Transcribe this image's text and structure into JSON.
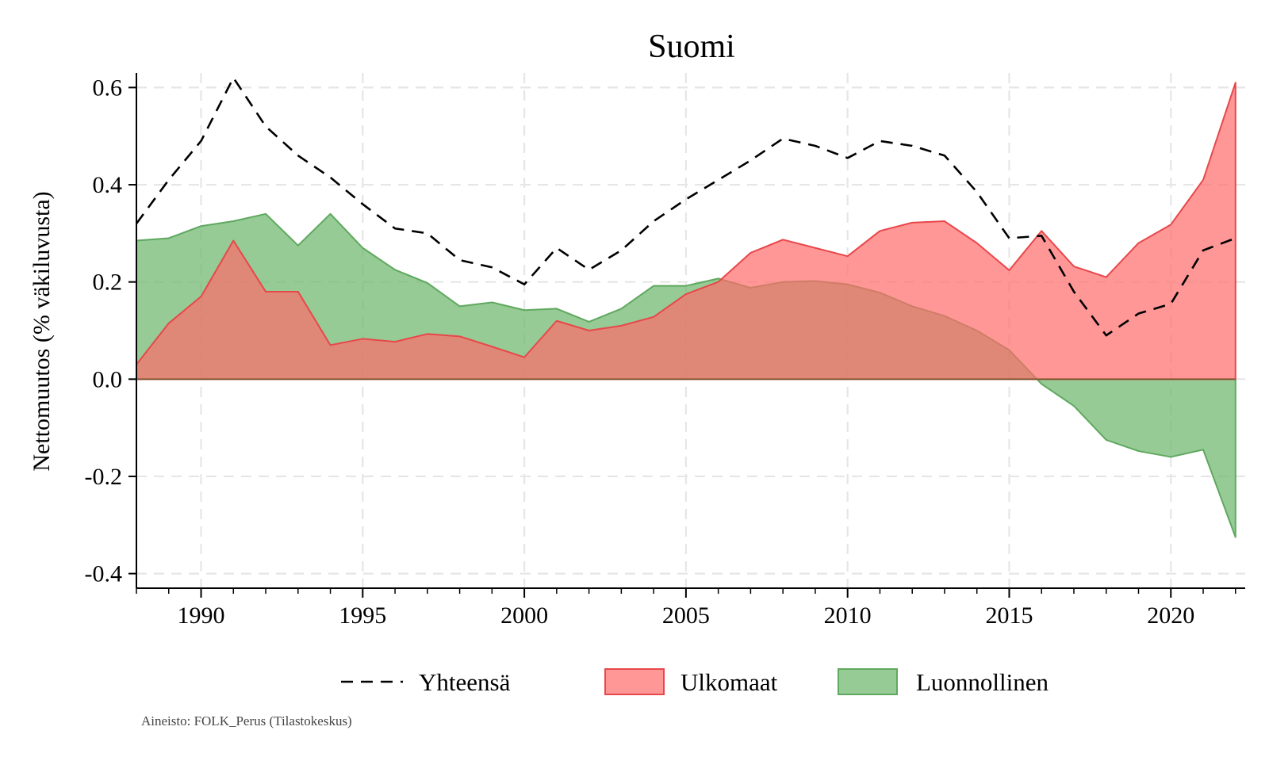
{
  "chart_data": {
    "type": "area",
    "title": "Suomi",
    "xlabel": "",
    "ylabel": "Nettomuutos (% väkiluvusta)",
    "xlim": [
      1988,
      2022.3
    ],
    "ylim": [
      -0.43,
      0.63
    ],
    "x_ticks": [
      1990,
      1995,
      2000,
      2005,
      2010,
      2015,
      2020
    ],
    "y_ticks": [
      -0.4,
      -0.2,
      0.0,
      0.2,
      0.4,
      0.6
    ],
    "y_tick_labels": [
      "-0.4",
      "-0.2",
      "0.0",
      "0.2",
      "0.4",
      "0.6"
    ],
    "grid": true,
    "legend_position": "bottom",
    "x": [
      1988,
      1989,
      1990,
      1991,
      1992,
      1993,
      1994,
      1995,
      1996,
      1997,
      1998,
      1999,
      2000,
      2001,
      2002,
      2003,
      2004,
      2005,
      2006,
      2007,
      2008,
      2009,
      2010,
      2011,
      2012,
      2013,
      2014,
      2015,
      2016,
      2017,
      2018,
      2019,
      2020,
      2021,
      2022
    ],
    "series": [
      {
        "name": "Yhteensä",
        "style": "dashed-line",
        "color": "#000000",
        "values": [
          0.32,
          0.41,
          0.49,
          0.62,
          0.52,
          0.46,
          0.415,
          0.36,
          0.31,
          0.3,
          0.245,
          0.23,
          0.195,
          0.27,
          0.225,
          0.265,
          0.325,
          0.37,
          0.41,
          0.45,
          0.495,
          0.48,
          0.455,
          0.49,
          0.48,
          0.46,
          0.385,
          0.29,
          0.295,
          0.18,
          0.09,
          0.135,
          0.155,
          0.265,
          0.29
        ]
      },
      {
        "name": "Ulkomaat",
        "style": "area",
        "color": "#ff6b6b",
        "values": [
          0.03,
          0.115,
          0.17,
          0.285,
          0.18,
          0.18,
          0.07,
          0.083,
          0.077,
          0.093,
          0.088,
          0.067,
          0.045,
          0.12,
          0.1,
          0.11,
          0.128,
          0.175,
          0.2,
          0.26,
          0.287,
          0.27,
          0.253,
          0.305,
          0.322,
          0.325,
          0.28,
          0.224,
          0.305,
          0.232,
          0.21,
          0.28,
          0.318,
          0.41,
          0.61
        ]
      },
      {
        "name": "Luonnollinen",
        "style": "area",
        "color": "#6ab56a",
        "values": [
          0.285,
          0.29,
          0.315,
          0.325,
          0.34,
          0.275,
          0.34,
          0.27,
          0.225,
          0.198,
          0.15,
          0.158,
          0.142,
          0.145,
          0.118,
          0.145,
          0.192,
          0.192,
          0.207,
          0.188,
          0.2,
          0.202,
          0.195,
          0.178,
          0.15,
          0.13,
          0.1,
          0.06,
          -0.01,
          -0.055,
          -0.125,
          -0.148,
          -0.16,
          -0.145,
          -0.325
        ]
      }
    ]
  },
  "source_note": "Aineisto: FOLK_Perus (Tilastokeskus)"
}
